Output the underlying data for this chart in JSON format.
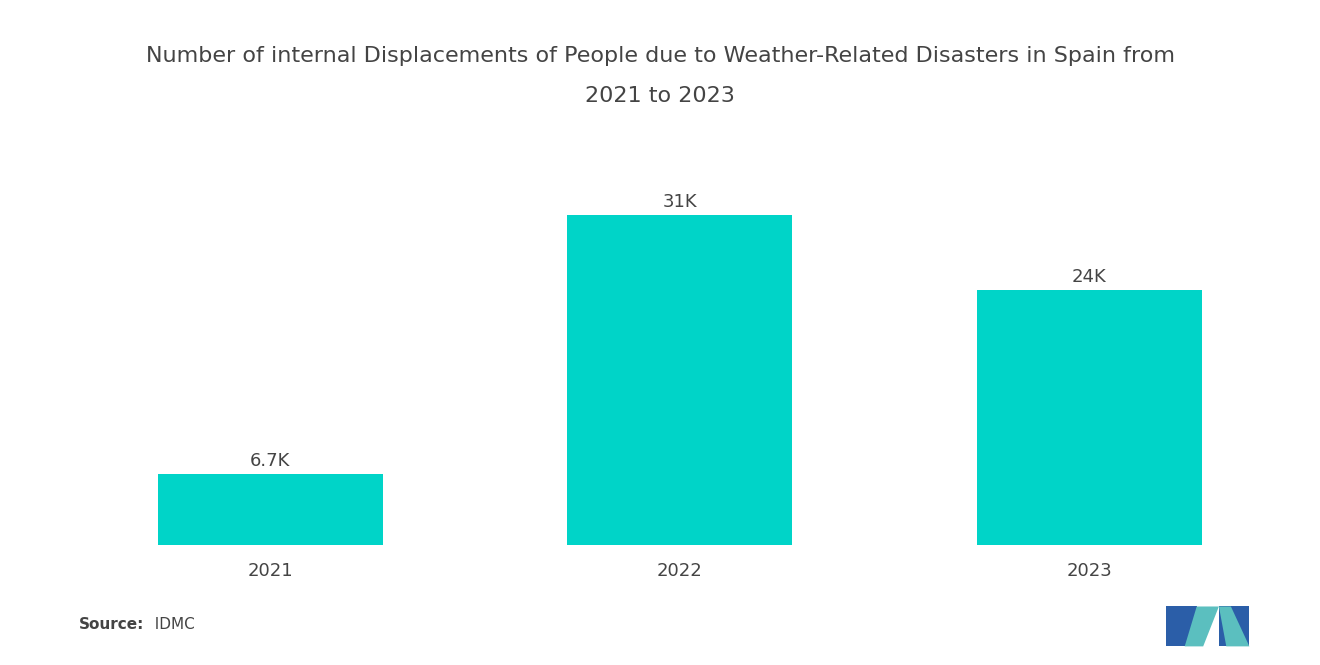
{
  "title_line1": "Number of internal Displacements of People due to Weather-Related Disasters in Spain from",
  "title_line2": "2021 to 2023",
  "categories": [
    "2021",
    "2022",
    "2023"
  ],
  "values": [
    6700,
    31000,
    24000
  ],
  "labels": [
    "6.7K",
    "31K",
    "24K"
  ],
  "bar_color": "#00D4C8",
  "background_color": "#ffffff",
  "title_fontsize": 16,
  "label_fontsize": 13,
  "tick_fontsize": 13,
  "source_bold": "Source:",
  "source_normal": "  IDMC",
  "ylim": [
    0,
    40000
  ],
  "bar_width": 0.55
}
